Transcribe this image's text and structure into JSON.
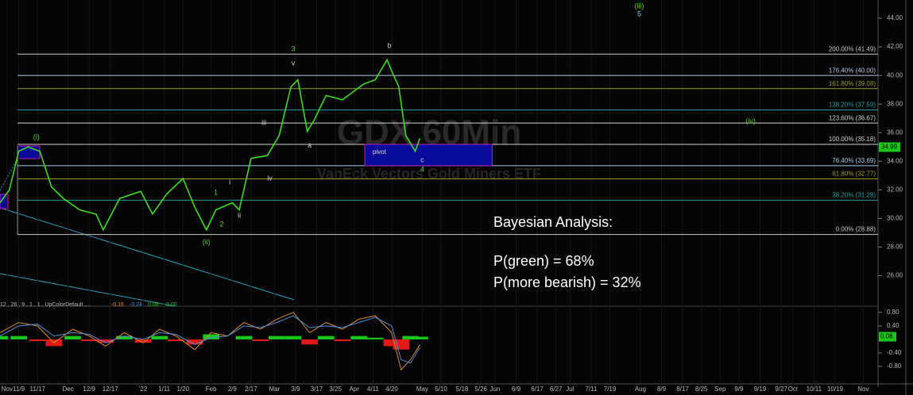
{
  "chart_data": [
    {
      "type": "line",
      "title": "GDX 60Min",
      "subtitle": "VanEck Vectors Gold Miners ETF",
      "x": [
        -3,
        1,
        5,
        9,
        14,
        19,
        24,
        31,
        38,
        41,
        48,
        57,
        62,
        68,
        75,
        80,
        85,
        89,
        96,
        99,
        104,
        111,
        116,
        121,
        124,
        128,
        131,
        136,
        143,
        152,
        157,
        162,
        164,
        167,
        170,
        174,
        176
      ],
      "series": [
        {
          "color": "#3ddc1f",
          "values": [
            31.1,
            32.0,
            34.7,
            35.0,
            34.7,
            32.2,
            31.4,
            30.6,
            30.3,
            29.2,
            31.4,
            31.9,
            30.3,
            31.7,
            32.8,
            30.8,
            29.2,
            30.6,
            31.1,
            30.6,
            34.2,
            34.4,
            35.8,
            39.2,
            39.7,
            36.1,
            36.9,
            38.6,
            38.3,
            39.4,
            39.7,
            41.1,
            40.3,
            39.2,
            35.8,
            34.7,
            35.6
          ]
        }
      ],
      "xlim": [
        -3,
        373
      ],
      "xticks": [
        {
          "value": 0,
          "label": "Nov"
        },
        {
          "value": 5,
          "label": "11/9"
        },
        {
          "value": 13,
          "label": "11/17"
        },
        {
          "value": 26,
          "label": "Dec"
        },
        {
          "value": 35,
          "label": "12/9"
        },
        {
          "value": 44,
          "label": "12/17"
        },
        {
          "value": 58,
          "label": "'22"
        },
        {
          "value": 67,
          "label": "1/11"
        },
        {
          "value": 75,
          "label": "1/20"
        },
        {
          "value": 87,
          "label": "Feb"
        },
        {
          "value": 96,
          "label": "2/9"
        },
        {
          "value": 104,
          "label": "2/17"
        },
        {
          "value": 114,
          "label": "Mar"
        },
        {
          "value": 123,
          "label": "3/9"
        },
        {
          "value": 132,
          "label": "3/17"
        },
        {
          "value": 140,
          "label": "3/25"
        },
        {
          "value": 148,
          "label": "Apr"
        },
        {
          "value": 156,
          "label": "4/11"
        },
        {
          "value": 164,
          "label": "4/20"
        },
        {
          "value": 177,
          "label": "May"
        },
        {
          "value": 185,
          "label": "5/10"
        },
        {
          "value": 194,
          "label": "5/18"
        },
        {
          "value": 202,
          "label": "5/26"
        },
        {
          "value": 208,
          "label": "Jun"
        },
        {
          "value": 217,
          "label": "6/9"
        },
        {
          "value": 226,
          "label": "6/17"
        },
        {
          "value": 234,
          "label": "6/27"
        },
        {
          "value": 240,
          "label": "Jul"
        },
        {
          "value": 249,
          "label": "7/11"
        },
        {
          "value": 257,
          "label": "7/19"
        },
        {
          "value": 270,
          "label": "Aug"
        },
        {
          "value": 279,
          "label": "8/9"
        },
        {
          "value": 288,
          "label": "8/17"
        },
        {
          "value": 296,
          "label": "8/25"
        },
        {
          "value": 304,
          "label": "Sep"
        },
        {
          "value": 312,
          "label": "9/9"
        },
        {
          "value": 321,
          "label": "9/19"
        },
        {
          "value": 330,
          "label": "9/27"
        },
        {
          "value": 335,
          "label": "Oct"
        },
        {
          "value": 344,
          "label": "10/11"
        },
        {
          "value": 353,
          "label": "10/19"
        },
        {
          "value": 365,
          "label": "Nov"
        }
      ],
      "ylim": [
        24.2,
        45
      ],
      "yticks": [
        {
          "value": 44,
          "label": "44.00"
        },
        {
          "value": 42,
          "label": "42.00"
        },
        {
          "value": 40,
          "label": "40.00"
        },
        {
          "value": 38,
          "label": "38.00"
        },
        {
          "value": 36,
          "label": "36.00"
        },
        {
          "value": 34,
          "label": "34.00"
        },
        {
          "value": 32,
          "label": "32.00"
        },
        {
          "value": 30,
          "label": "30.00"
        },
        {
          "value": 28,
          "label": "28.00"
        },
        {
          "value": 26,
          "label": "26.00"
        }
      ],
      "last_price": {
        "value": 34.99,
        "label": "34.99"
      },
      "levels": [
        {
          "value": 41.49,
          "label": "200.00% (41.49)",
          "color": "#c8c8c8"
        },
        {
          "value": 40.0,
          "label": "176.40% (40.00)",
          "color": "#b8c8e0"
        },
        {
          "value": 39.08,
          "label": "161.80% (39.08)",
          "color": "#9a9a30"
        },
        {
          "value": 37.59,
          "label": "138.20% (37.59)",
          "color": "#2a9a9a"
        },
        {
          "value": 36.67,
          "label": "123.60% (36.67)",
          "color": "#d0d0d0"
        },
        {
          "value": 35.18,
          "label": "100.00% (35.18)",
          "color": "#d0d0d0"
        },
        {
          "value": 33.69,
          "label": "76.40% (33.69)",
          "color": "#a8c8e8"
        },
        {
          "value": 32.77,
          "label": "61.80% (32.77)",
          "color": "#9a9a30"
        },
        {
          "value": 31.28,
          "label": "38.20% (31.28)",
          "color": "#2a9a9a"
        },
        {
          "value": 28.88,
          "label": "0.00% (28.88)",
          "color": "#c8c8c8"
        }
      ],
      "zone": {
        "label": "pivot",
        "color": "#0a0a9a",
        "border": "#c020c0"
      },
      "annotations": [
        {
          "text": "(iii)",
          "color": "#5bd12a"
        },
        {
          "text": "5",
          "color": "#8fc8e0"
        },
        {
          "text": "(i)",
          "color": "#5bd12a"
        },
        {
          "text": "(ii)",
          "color": "#5bd12a"
        },
        {
          "text": "(iv)",
          "color": "#5bd12a"
        },
        {
          "text": "3",
          "color": "#5bd12a"
        },
        {
          "text": "v",
          "color": "#d0d0d0"
        },
        {
          "text": "b",
          "color": "#d0d0d0"
        },
        {
          "text": "iii",
          "color": "#d0d0d0"
        },
        {
          "text": "a",
          "color": "#d0d0d0"
        },
        {
          "text": "iv",
          "color": "#d0d0d0"
        },
        {
          "text": "i",
          "color": "#d0d0d0"
        },
        {
          "text": "ii",
          "color": "#d0d0d0"
        },
        {
          "text": "1",
          "color": "#5bd12a"
        },
        {
          "text": "2",
          "color": "#5bd12a"
        },
        {
          "text": "c",
          "color": "#d0d0d0"
        },
        {
          "text": "4",
          "color": "#5bd12a"
        }
      ],
      "notes": [
        "Bayesian Analysis:",
        "P(green) = 68%",
        "P(more bearish) = 32%"
      ]
    },
    {
      "type": "macd",
      "legend": "12 , 26 , 9 , 1 , 1 , UpColorDefault ,...",
      "readout": [
        {
          "value": -0.16,
          "label": "-0.16",
          "color": "#e08a2e"
        },
        {
          "value": -0.24,
          "label": "-0.24",
          "color": "#4a90d9"
        },
        {
          "value": 0.08,
          "label": "0.08",
          "color": "#19c819"
        },
        {
          "value": 0,
          "label": "0.00",
          "color": "#19c819"
        }
      ],
      "x": [
        -3,
        5,
        13,
        20,
        28,
        35,
        42,
        50,
        58,
        65,
        72,
        80,
        87,
        94,
        101,
        108,
        115,
        122,
        129,
        136,
        143,
        150,
        157,
        164,
        168,
        172,
        176
      ],
      "series": [
        {
          "color": "#e08a2e",
          "values": [
            0.2,
            0.5,
            0.4,
            -0.1,
            0.3,
            0.1,
            -0.2,
            0.2,
            -0.1,
            0.3,
            0.1,
            -0.3,
            0.2,
            0.1,
            0.5,
            0.3,
            0.6,
            0.8,
            0.2,
            0.5,
            0.3,
            0.6,
            0.7,
            0.2,
            -0.9,
            -0.6,
            -0.16
          ]
        },
        {
          "color": "#4a90d9",
          "values": [
            0.1,
            0.4,
            0.45,
            0.1,
            0.2,
            0.15,
            -0.1,
            0.1,
            0.0,
            0.2,
            0.15,
            -0.15,
            0.05,
            0.1,
            0.4,
            0.35,
            0.5,
            0.7,
            0.35,
            0.4,
            0.35,
            0.5,
            0.65,
            0.4,
            -0.6,
            -0.7,
            -0.24
          ]
        }
      ],
      "histogram": {
        "values": [
          0.1,
          0.1,
          -0.05,
          -0.2,
          0.1,
          -0.05,
          -0.1,
          0.1,
          -0.1,
          0.1,
          -0.05,
          -0.15,
          0.15,
          0,
          0.1,
          -0.05,
          0.1,
          0.1,
          -0.15,
          0.1,
          -0.05,
          0.1,
          0.05,
          -0.2,
          -0.3,
          0.1,
          0.08
        ],
        "colors": [
          "#19c819",
          "#e01919"
        ]
      },
      "ylim": [
        -1.27,
        0.89
      ],
      "yticks": [
        {
          "value": 0.8,
          "label": "0.80"
        },
        {
          "value": 0.4,
          "label": "0.40"
        },
        {
          "value": -0.4,
          "label": "-0.40"
        },
        {
          "value": -0.8,
          "label": "-0.80"
        }
      ],
      "last_value": {
        "value": 0.08,
        "label": "0.08"
      }
    }
  ]
}
